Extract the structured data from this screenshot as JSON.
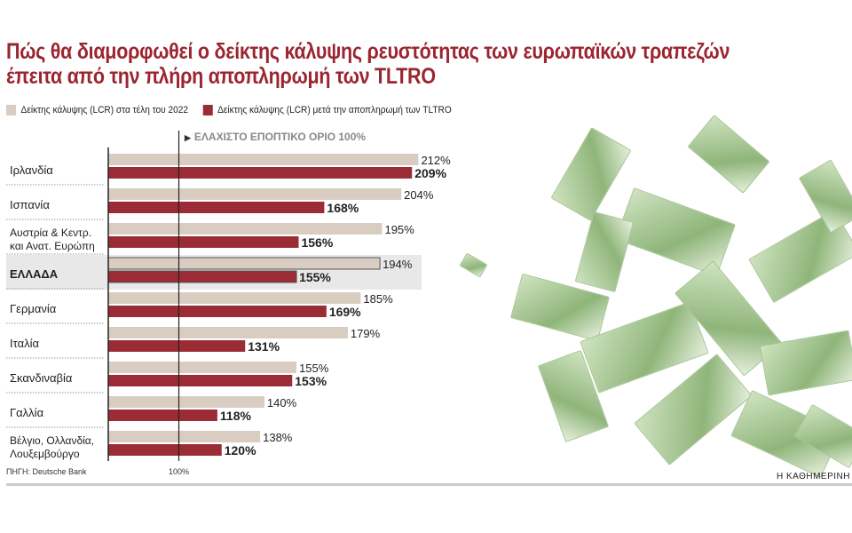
{
  "chart_data": {
    "type": "bar",
    "orientation": "horizontal",
    "title": "Πώς θα διαμορφωθεί ο δείκτης κάλυψης ρευστότητας των ευρωπαϊκών τραπεζών έπειτα από την πλήρη αποπληρωμή των TLTRO",
    "title_lines": [
      "Πώς θα διαμορφωθεί ο δείκτης κάλυψης ρευστότητας των ευρωπαϊκών τραπεζών",
      "έπειτα από την πλήρη αποπληρωμή των TLTRO"
    ],
    "categories": [
      "Ιρλανδία",
      "Ισπανία",
      "Αυστρία & Κεντρ. και Ανατ. Ευρώπη",
      "ΕΛΛΑΔΑ",
      "Γερμανία",
      "Ιταλία",
      "Σκανδιναβία",
      "Γαλλία",
      "Βέλγιο, Ολλανδία, Λουξεμβούργο"
    ],
    "category_lines": [
      [
        "Ιρλανδία"
      ],
      [
        "Ισπανία"
      ],
      [
        "Αυστρία & Κεντρ.",
        "και Ανατ. Ευρώπη"
      ],
      [
        "ΕΛΛΑΔΑ"
      ],
      [
        "Γερμανία"
      ],
      [
        "Ιταλία"
      ],
      [
        "Σκανδιναβία"
      ],
      [
        "Γαλλία"
      ],
      [
        "Βέλγιο, Ολλανδία,",
        "Λουξεμβούργο"
      ]
    ],
    "highlight": "ΕΛΛΑΔΑ",
    "series": [
      {
        "name": "Δείκτης κάλυψης (LCR) στα τέλη του 2022",
        "color": "#d9cdc2",
        "values": [
          212,
          204,
          195,
          194,
          185,
          179,
          155,
          140,
          138
        ],
        "labels": [
          "212%",
          "204%",
          "195%",
          "194%",
          "185%",
          "179%",
          "155%",
          "140%",
          "138%"
        ]
      },
      {
        "name": "Δείκτης κάλυψης (LCR) μετά την αποπληρωμή των TLTRO",
        "color": "#9b2c35",
        "values": [
          209,
          168,
          156,
          155,
          169,
          131,
          153,
          118,
          120
        ],
        "labels": [
          "209%",
          "168%",
          "156%",
          "155%",
          "169%",
          "131%",
          "153%",
          "118%",
          "120%"
        ]
      }
    ],
    "xlim": [
      67,
      230
    ],
    "reference_line": {
      "value": 100,
      "label": "ΕΛΑΧΙΣΤΟ ΕΠΟΠΤΙΚΟ ΟΡΙΟ 100%",
      "tick_label": "100%"
    },
    "legend_placement": "top-left"
  },
  "source": "ΠΗΓΗ: Deutsche Bank",
  "brand": "Η ΚΑΘΗΜΕΡΙΝΗ",
  "colors": {
    "title": "#9b2530",
    "highlight_bg": "#e8e8e8"
  }
}
